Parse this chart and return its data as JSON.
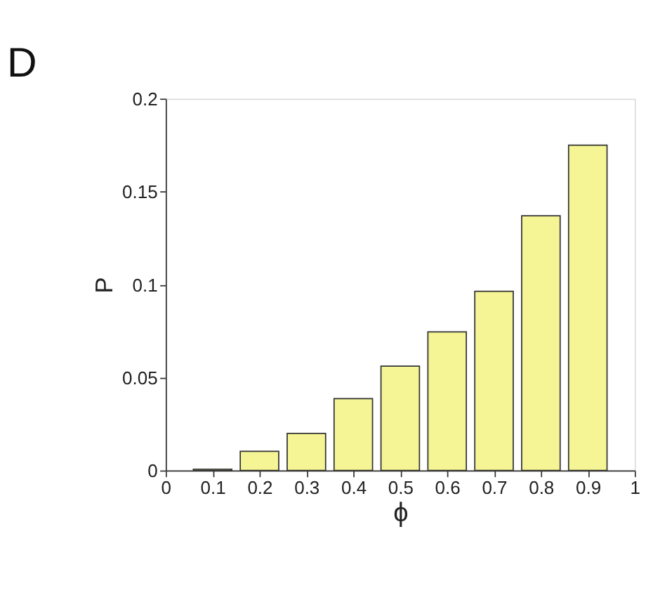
{
  "chart_data": {
    "type": "bar",
    "title": "D",
    "xlabel": "ϕ",
    "ylabel": "P",
    "x": [
      0.1,
      0.2,
      0.3,
      0.4,
      0.5,
      0.6,
      0.7,
      0.8,
      0.9
    ],
    "values": [
      0.0007,
      0.0103,
      0.0199,
      0.0386,
      0.0561,
      0.0745,
      0.0964,
      0.137,
      0.175
    ],
    "color": "#f5f595",
    "xlim": [
      0,
      1
    ],
    "xticks": [
      0,
      0.1,
      0.2,
      0.3,
      0.4,
      0.5,
      0.6,
      0.7,
      0.8,
      0.9,
      1
    ],
    "ylim": [
      0,
      0.2
    ],
    "yticks": [
      0,
      0.05,
      0.1,
      0.15,
      0.2
    ],
    "grid": false
  }
}
